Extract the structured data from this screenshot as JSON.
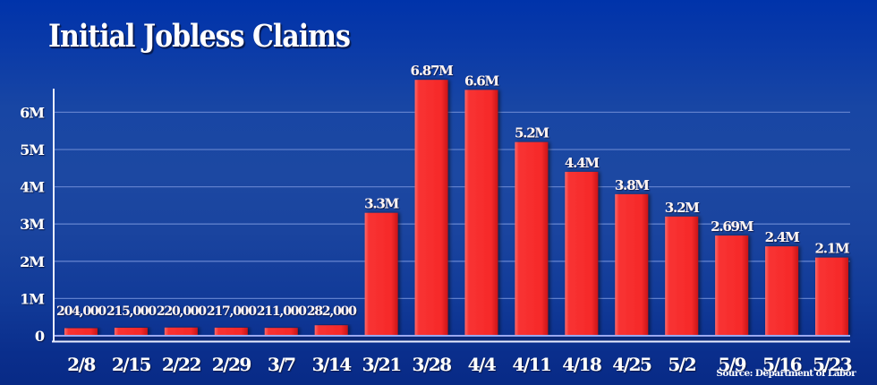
{
  "title": "Initial Jobless Claims",
  "source": "Source: Department of Labor",
  "colors": {
    "bar": "#f62a2a",
    "bar_highlight": "#ff5050",
    "bar_shadow": "#b40f14",
    "gridline": "#5f7fcc",
    "axis": "#e8ecff",
    "baseline_inner": "#9aa8f0",
    "plot_band": "#0d2a7a"
  },
  "chart_data": {
    "type": "bar",
    "title": "Initial Jobless Claims",
    "xlabel": "",
    "ylabel": "",
    "categories": [
      "2/8",
      "2/15",
      "2/22",
      "2/29",
      "3/7",
      "3/14",
      "3/21",
      "3/28",
      "4/4",
      "4/11",
      "4/18",
      "4/25",
      "5/2",
      "5/9",
      "5/16",
      "5/23"
    ],
    "values": [
      204000,
      215000,
      220000,
      217000,
      211000,
      282000,
      3300000,
      6870000,
      6600000,
      5200000,
      4400000,
      3800000,
      3200000,
      2690000,
      2400000,
      2100000
    ],
    "data_labels": [
      "204,000",
      "215,000",
      "220,000",
      "217,000",
      "211,000",
      "282,000",
      "3.3M",
      "6.87M",
      "6.6M",
      "5.2M",
      "4.4M",
      "3.8M",
      "3.2M",
      "2.69M",
      "2.4M",
      "2.1M"
    ],
    "yticks": [
      0,
      1000000,
      2000000,
      3000000,
      4000000,
      5000000,
      6000000
    ],
    "ytick_labels": [
      "0",
      "1M",
      "2M",
      "3M",
      "4M",
      "5M",
      "6M"
    ],
    "ylim": [
      0,
      7000000
    ],
    "grid": true,
    "legend": null,
    "annotation": "Source: Department of Labor"
  }
}
